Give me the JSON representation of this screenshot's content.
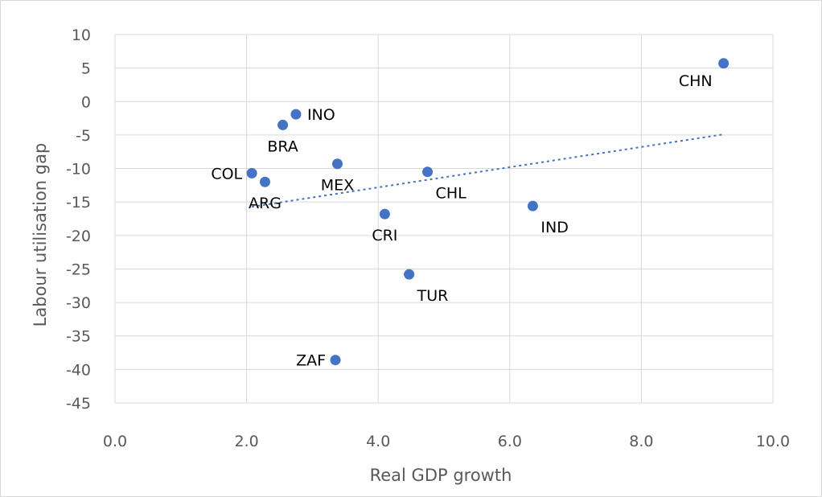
{
  "chart_data": {
    "type": "scatter",
    "title": "",
    "xlabel": "Real GDP growth",
    "ylabel": "Labour utilisation gap",
    "xlim": [
      0,
      10
    ],
    "ylim": [
      -45,
      10
    ],
    "xticks": [
      0,
      2,
      4,
      6,
      8,
      10
    ],
    "xtick_labels": [
      "0.0",
      "2.0",
      "4.0",
      "6.0",
      "8.0",
      "10.0"
    ],
    "yticks": [
      10,
      5,
      0,
      -5,
      -10,
      -15,
      -20,
      -25,
      -30,
      -35,
      -40,
      -45
    ],
    "ytick_labels": [
      "10",
      "5",
      "0",
      "-5",
      "-10",
      "-15",
      "-20",
      "-25",
      "-30",
      "-35",
      "-40",
      "-45"
    ],
    "grid": true,
    "legend": "none",
    "colors": {
      "point": "#4472c4",
      "trend": "#4472c4",
      "grid": "#d9d9d9"
    },
    "points": [
      {
        "label": "CHN",
        "x": 9.25,
        "y": 5.7,
        "label_pos": "below-left"
      },
      {
        "label": "INO",
        "x": 2.75,
        "y": -1.9,
        "label_pos": "right"
      },
      {
        "label": "BRA",
        "x": 2.55,
        "y": -3.5,
        "label_pos": "below"
      },
      {
        "label": "COL",
        "x": 2.08,
        "y": -10.7,
        "label_pos": "left"
      },
      {
        "label": "ARG",
        "x": 2.28,
        "y": -12.0,
        "label_pos": "below"
      },
      {
        "label": "MEX",
        "x": 3.38,
        "y": -9.3,
        "label_pos": "below"
      },
      {
        "label": "CHL",
        "x": 4.75,
        "y": -10.5,
        "label_pos": "below-right"
      },
      {
        "label": "CRI",
        "x": 4.1,
        "y": -16.8,
        "label_pos": "below"
      },
      {
        "label": "IND",
        "x": 6.35,
        "y": -15.6,
        "label_pos": "below-right"
      },
      {
        "label": "TUR",
        "x": 4.47,
        "y": -25.8,
        "label_pos": "below-right"
      },
      {
        "label": "ZAF",
        "x": 3.35,
        "y": -38.6,
        "label_pos": "left"
      }
    ],
    "trendline": {
      "type": "linear",
      "x_range": [
        2.08,
        9.25
      ]
    }
  }
}
